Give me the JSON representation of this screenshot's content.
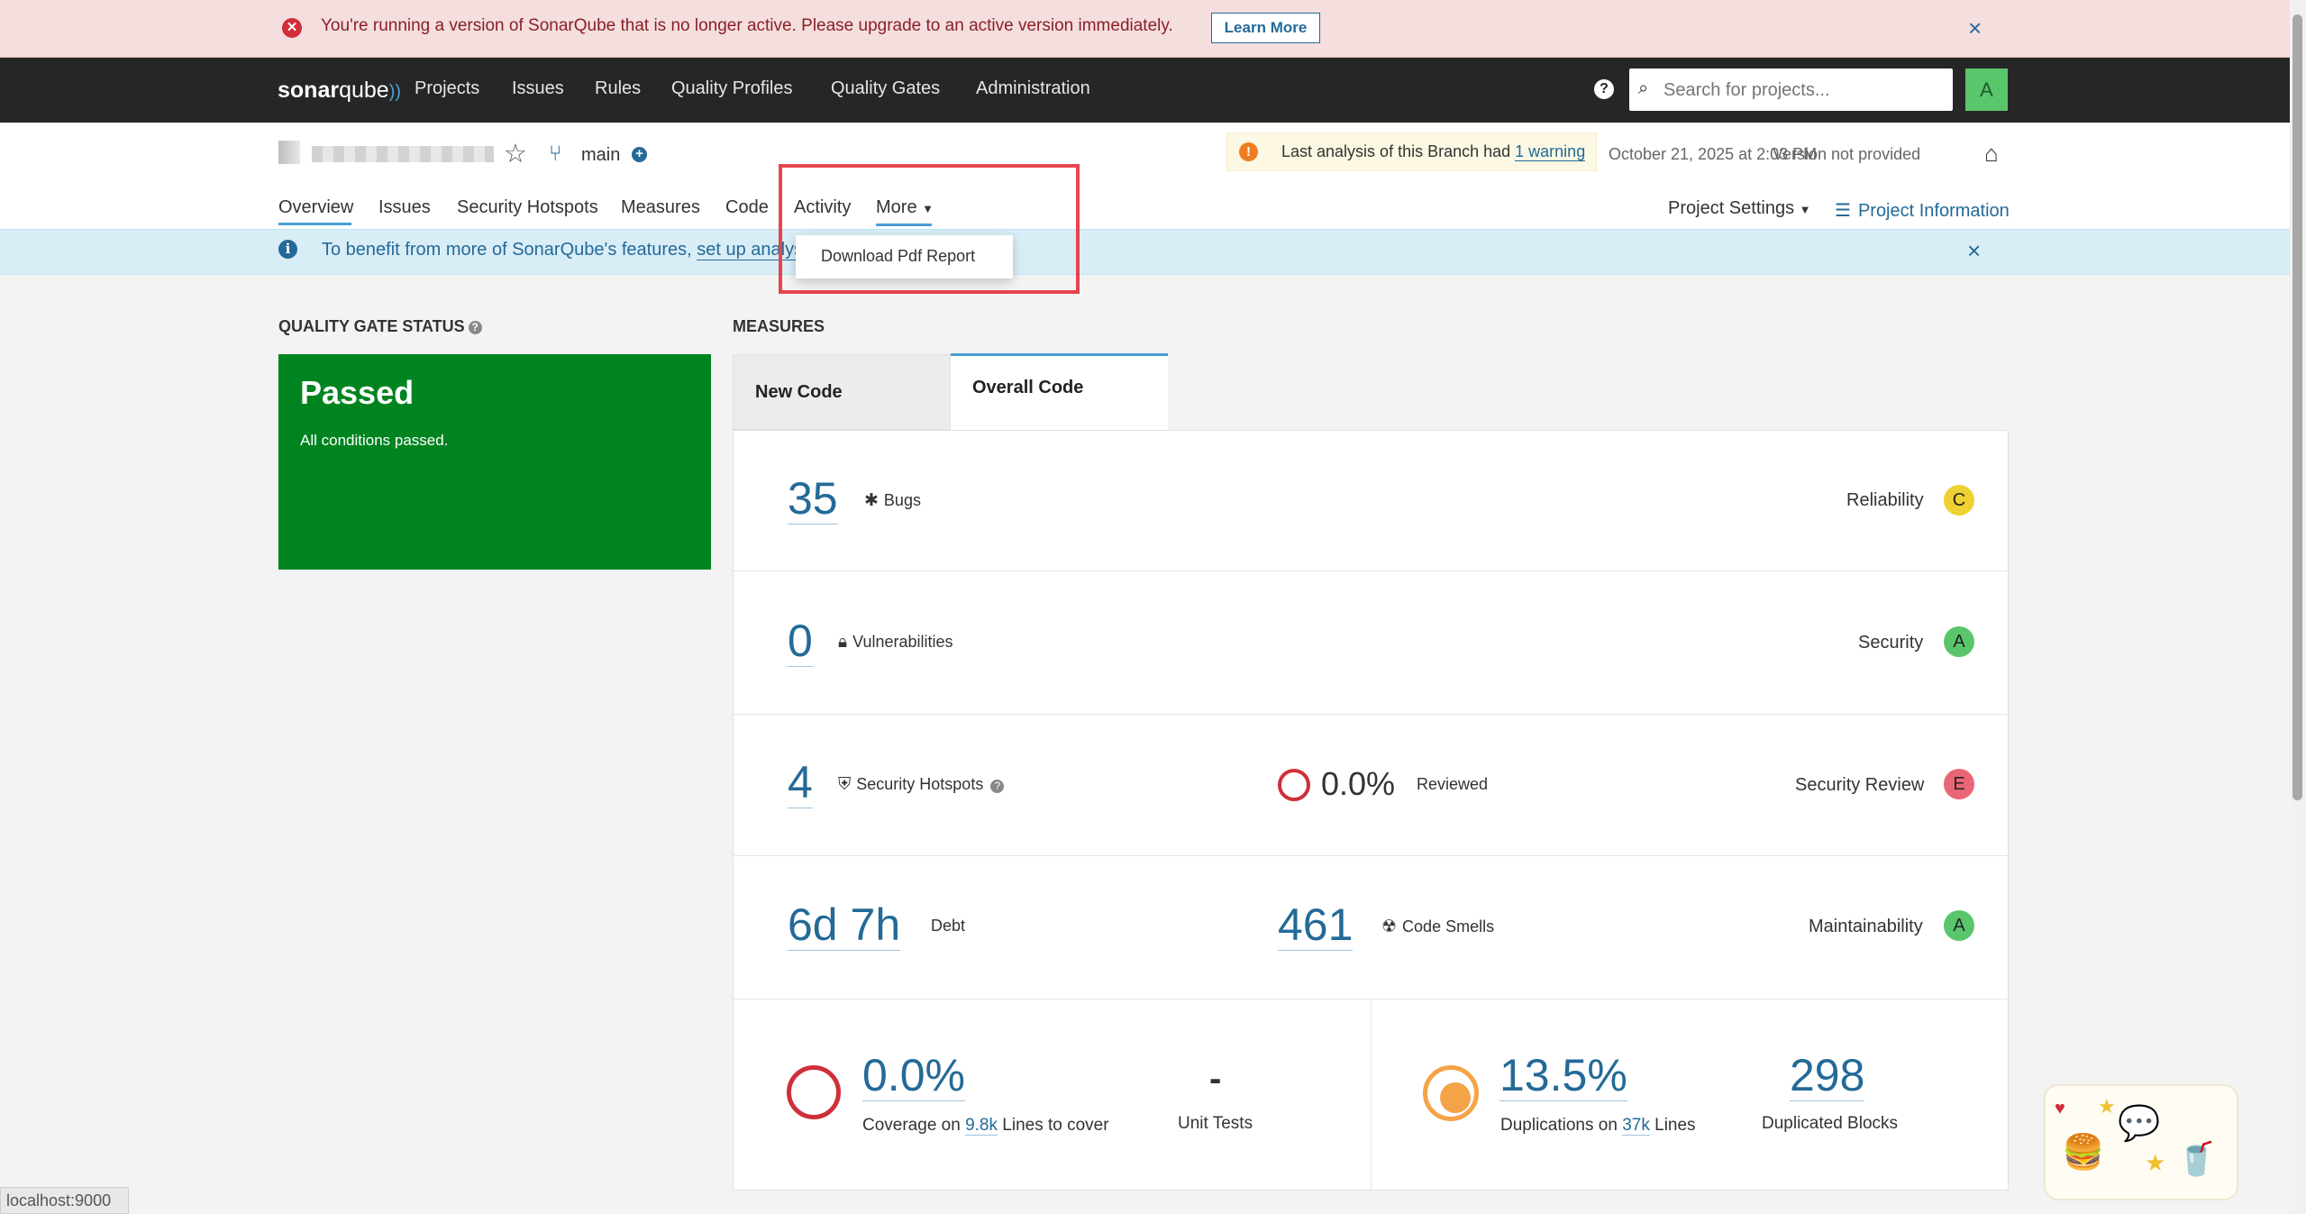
{
  "banner": {
    "message": "You're running a version of SonarQube that is no longer active. Please upgrade to an active version immediately.",
    "learn_more": "Learn More",
    "icon": "error-circle-icon",
    "close": "×"
  },
  "topnav": {
    "logo_bold": "sonar",
    "logo_rest": "qube",
    "items": [
      "Projects",
      "Issues",
      "Rules",
      "Quality Profiles",
      "Quality Gates",
      "Administration"
    ],
    "help": "?",
    "search_placeholder": "Search for projects...",
    "avatar": "A"
  },
  "project": {
    "branch": "main",
    "analysis_warning_prefix": "Last analysis of this Branch had ",
    "analysis_warning_link": "1 warning",
    "analysis_date": "October 21, 2025 at 2:03 PM",
    "version": "Version not provided",
    "tabs": [
      "Overview",
      "Issues",
      "Security Hotspots",
      "Measures",
      "Code",
      "Activity",
      "More"
    ],
    "project_settings": "Project Settings",
    "project_information": "Project Information",
    "more_menu": [
      "Download Pdf Report"
    ]
  },
  "infobar": {
    "text_prefix": "To benefit from more of SonarQube's features, ",
    "link": "set up analysi"
  },
  "quality_gate": {
    "title": "QUALITY GATE STATUS",
    "status": "Passed",
    "conditions": "All conditions passed."
  },
  "measures": {
    "title": "MEASURES",
    "tabs": [
      "New Code",
      "Overall Code"
    ],
    "bugs": {
      "value": "35",
      "label": "Bugs",
      "rating_label": "Reliability",
      "rating": "C"
    },
    "vulnerabilities": {
      "value": "0",
      "label": "Vulnerabilities",
      "rating_label": "Security",
      "rating": "A"
    },
    "hotspots": {
      "value": "4",
      "label": "Security Hotspots",
      "reviewed_value": "0.0%",
      "reviewed_label": "Reviewed",
      "rating_label": "Security Review",
      "rating": "E"
    },
    "maintainability": {
      "debt_value": "6d 7h",
      "debt_label": "Debt",
      "smells_value": "461",
      "smells_label": "Code Smells",
      "rating_label": "Maintainability",
      "rating": "A"
    },
    "coverage": {
      "value": "0.0%",
      "label_prefix": "Coverage on ",
      "lines": "9.8k",
      "label_suffix": " Lines to cover",
      "unit_tests_value": "-",
      "unit_tests_label": "Unit Tests"
    },
    "duplications": {
      "value": "13.5%",
      "label_prefix": "Duplications on ",
      "lines": "37k",
      "label_suffix": " Lines",
      "blocks_value": "298",
      "blocks_label": "Duplicated Blocks"
    }
  },
  "colors": {
    "passed": "#00841f",
    "rating_A": "#59c66c",
    "rating_C": "#eed132",
    "rating_E": "#ea6575",
    "link": "#236a97",
    "highlight": "#e4454e"
  },
  "statusbar": {
    "url": "localhost:9000"
  }
}
